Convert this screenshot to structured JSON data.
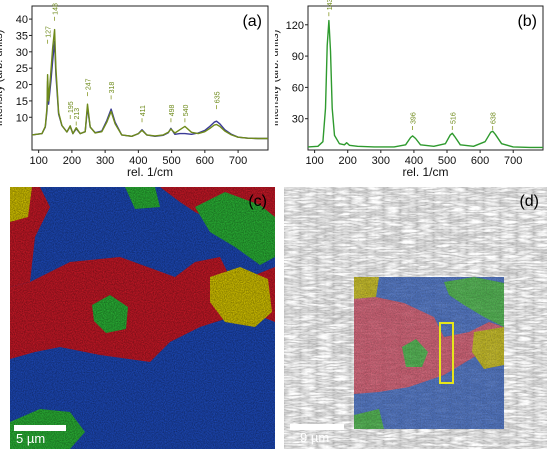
{
  "chart_data": [
    {
      "panel": "(a)",
      "type": "line",
      "xlabel": "rel. 1/cm",
      "ylabel": "Intensity (arb. units)",
      "xlim": [
        80,
        790
      ],
      "ylim": [
        0,
        44
      ],
      "xticks": [
        100,
        200,
        300,
        400,
        500,
        600,
        700
      ],
      "yticks": [
        10,
        15,
        20,
        25,
        30,
        35,
        40
      ],
      "peak_labels": [
        "127",
        "148",
        "195",
        "213",
        "247",
        "318",
        "411",
        "498",
        "540",
        "635"
      ],
      "peak_positions": [
        127,
        148,
        195,
        213,
        247,
        318,
        411,
        498,
        540,
        635
      ],
      "peak_label_heights": [
        34,
        41,
        11,
        9,
        18,
        17,
        10,
        10,
        10,
        14
      ],
      "series": [
        {
          "color": "#3a3a96",
          "x": [
            80,
            110,
            120,
            125,
            127,
            130,
            137,
            142,
            148,
            152,
            160,
            170,
            185,
            195,
            203,
            213,
            225,
            240,
            247,
            255,
            270,
            290,
            305,
            318,
            330,
            350,
            380,
            400,
            411,
            425,
            450,
            475,
            490,
            498,
            510,
            525,
            540,
            560,
            580,
            600,
            615,
            628,
            635,
            645,
            660,
            680,
            700,
            730,
            760,
            790
          ],
          "y": [
            4.6,
            5,
            7,
            12,
            21,
            14,
            21,
            27,
            33.2,
            23,
            11,
            7.5,
            5.5,
            7.2,
            5,
            6.5,
            5,
            5.6,
            13,
            7,
            5.3,
            5.8,
            9,
            12.5,
            8.5,
            4.6,
            4.2,
            5,
            6.2,
            4.6,
            4.2,
            4.5,
            5.3,
            6.6,
            4.8,
            5,
            5,
            4.8,
            5.2,
            6,
            7.2,
            8.5,
            8.8,
            8,
            6.2,
            4.8,
            3.9,
            3.6,
            3.5,
            3.5
          ]
        },
        {
          "color": "#6e8a1a",
          "x": [
            80,
            110,
            120,
            125,
            127,
            130,
            137,
            142,
            148,
            152,
            160,
            170,
            185,
            195,
            203,
            213,
            225,
            240,
            247,
            255,
            270,
            290,
            305,
            318,
            330,
            350,
            380,
            400,
            411,
            425,
            450,
            475,
            490,
            498,
            510,
            525,
            540,
            560,
            580,
            600,
            615,
            628,
            635,
            645,
            660,
            680,
            700,
            730,
            760,
            790
          ],
          "y": [
            4.6,
            5,
            7.2,
            13,
            23,
            15,
            24,
            31,
            36.8,
            25,
            11.5,
            7.5,
            5.5,
            7.4,
            5,
            6.8,
            5,
            5.6,
            14,
            7,
            5.2,
            5.6,
            8.5,
            11.8,
            8,
            4.6,
            4.2,
            5,
            6,
            4.6,
            4.3,
            4.6,
            5.4,
            6.4,
            5.2,
            6.2,
            7.2,
            5.4,
            5,
            5.6,
            6.6,
            7.6,
            7.8,
            7.2,
            5.8,
            4.6,
            3.9,
            3.6,
            3.5,
            3.5
          ]
        }
      ]
    },
    {
      "panel": "(b)",
      "type": "line",
      "xlabel": "rel. 1/cm",
      "ylabel": "Intensity (arb. units)",
      "xlim": [
        80,
        790
      ],
      "ylim": [
        0,
        138
      ],
      "xticks": [
        100,
        200,
        300,
        400,
        500,
        600,
        700
      ],
      "yticks": [
        30,
        60,
        90,
        120
      ],
      "peak_labels": [
        "143",
        "396",
        "516",
        "638"
      ],
      "peak_positions": [
        143,
        396,
        516,
        638
      ],
      "peak_label_heights": [
        133,
        24,
        24,
        24
      ],
      "series": [
        {
          "color": "#2e9a2e",
          "x": [
            80,
            110,
            125,
            133,
            138,
            143,
            148,
            153,
            160,
            175,
            190,
            197,
            205,
            230,
            280,
            340,
            375,
            390,
            396,
            405,
            420,
            460,
            495,
            510,
            516,
            523,
            540,
            580,
            615,
            632,
            638,
            646,
            665,
            700,
            750,
            790
          ],
          "y": [
            3,
            3.5,
            8,
            40,
            100,
            124,
            95,
            40,
            14,
            6,
            5,
            7,
            4.5,
            3.5,
            3,
            3,
            5,
            12,
            13.5,
            11,
            5,
            3.5,
            6,
            14.5,
            16,
            13,
            5,
            3.5,
            8,
            17,
            18,
            15,
            6,
            3,
            2.5,
            2.5
          ]
        }
      ]
    }
  ],
  "panels": {
    "a_label": "(a)",
    "b_label": "(b)",
    "c_label": "(c)",
    "d_label": "(d)",
    "c_scale": "5 µm",
    "d_scale": "9 µm"
  }
}
